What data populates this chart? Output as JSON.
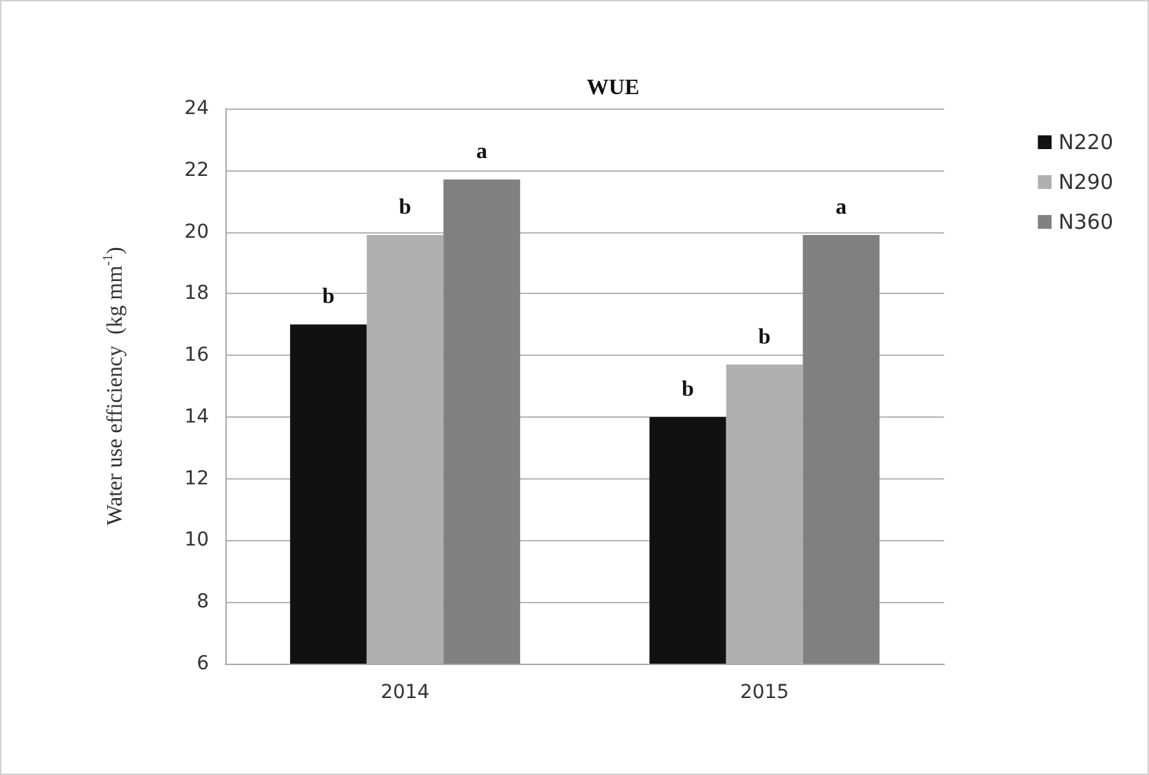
{
  "chart_data": {
    "type": "bar",
    "title": "WUE",
    "ylabel": "Water use efficiency  (kg mm$^{-1}$)",
    "categories": [
      "2014",
      "2015"
    ],
    "series": [
      {
        "name": "N220",
        "color": "#111111",
        "values": [
          17.0,
          14.0
        ],
        "value_labels": [
          "b",
          "b"
        ]
      },
      {
        "name": "N290",
        "color": "#b0b0b0",
        "values": [
          19.9,
          15.7
        ],
        "value_labels": [
          "b",
          "b"
        ]
      },
      {
        "name": "N360",
        "color": "#808080",
        "values": [
          21.7,
          19.9
        ],
        "value_labels": [
          "a",
          "a"
        ]
      }
    ],
    "ylim": [
      6,
      24
    ],
    "yticks": [
      6,
      8,
      10,
      12,
      14,
      16,
      18,
      20,
      22,
      24
    ],
    "grid": "y",
    "legend": "right"
  }
}
